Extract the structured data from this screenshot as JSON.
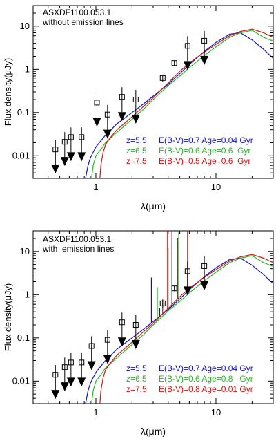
{
  "chart_data": [
    {
      "type": "line",
      "title": "ASXDF1100.053.1",
      "subtitle": "without emission lines",
      "xlabel": "λ(μm)",
      "ylabel": "Flux density(μJy)",
      "xscale": "log",
      "yscale": "log",
      "xlim": [
        0.3,
        30
      ],
      "ylim": [
        0.003,
        30
      ],
      "xticks": [
        {
          "value": 1,
          "label": "1"
        },
        {
          "value": 10,
          "label": "10"
        }
      ],
      "yticks": [
        {
          "value": 0.01,
          "label": "0.01"
        },
        {
          "value": 0.1,
          "label": "0.1"
        },
        {
          "value": 1,
          "label": "1"
        },
        {
          "value": 10,
          "label": "10"
        }
      ],
      "legend_position": "bottom-right",
      "series": [
        {
          "label": "z=5.5",
          "params": "E(B-V)=0.7 Age=0.04 Gyr",
          "color": "#1010c8",
          "x": [
            0.82,
            0.86,
            0.9,
            1.0,
            1.2,
            1.5,
            2.0,
            2.5,
            3.0,
            4.0,
            5.0,
            6.0,
            8.0,
            10.0,
            13.0,
            16.0,
            20.0,
            25.0,
            30.0
          ],
          "y": [
            0.003,
            0.006,
            0.009,
            0.016,
            0.03,
            0.055,
            0.1,
            0.16,
            0.24,
            0.45,
            0.8,
            1.3,
            2.6,
            4.2,
            6.5,
            7.0,
            4.8,
            2.9,
            1.8
          ]
        },
        {
          "label": "z=6.5",
          "params": "E(B-V)=0.6 Age=0.6  Gyr",
          "color": "#22bb22",
          "x": [
            0.92,
            0.95,
            1.0,
            1.1,
            1.2,
            1.5,
            2.0,
            2.5,
            3.0,
            4.0,
            5.0,
            6.0,
            8.0,
            10.0,
            13.0,
            16.0,
            20.0,
            25.0,
            30.0
          ],
          "y": [
            0.003,
            0.006,
            0.01,
            0.014,
            0.02,
            0.035,
            0.07,
            0.12,
            0.2,
            0.42,
            0.7,
            1.1,
            2.1,
            3.3,
            5.5,
            7.0,
            8.0,
            5.5,
            4.5
          ]
        },
        {
          "label": "z=7.5",
          "params": "E(B-V)=0.5 Age=0.6  Gyr",
          "color": "#dd1111",
          "x": [
            1.08,
            1.1,
            1.15,
            1.2,
            1.3,
            1.5,
            2.0,
            2.5,
            3.0,
            4.0,
            5.0,
            6.0,
            8.0,
            10.0,
            13.0,
            16.0,
            20.0,
            25.0,
            30.0
          ],
          "y": [
            0.003,
            0.006,
            0.012,
            0.018,
            0.025,
            0.04,
            0.08,
            0.14,
            0.22,
            0.48,
            0.9,
            1.4,
            2.5,
            3.8,
            6.0,
            7.5,
            8.5,
            7.0,
            5.5
          ]
        }
      ],
      "detections": [
        {
          "x": 3.6,
          "y": 0.63,
          "yerr": 0.12
        },
        {
          "x": 4.5,
          "y": 1.4,
          "yerr": 0.2
        }
      ],
      "upper_limits": [
        {
          "x": 0.46,
          "y": 0.014
        },
        {
          "x": 0.55,
          "y": 0.021
        },
        {
          "x": 0.62,
          "y": 0.027
        },
        {
          "x": 0.76,
          "y": 0.027
        },
        {
          "x": 1.02,
          "y": 0.17
        },
        {
          "x": 1.25,
          "y": 0.09
        },
        {
          "x": 1.65,
          "y": 0.23
        },
        {
          "x": 2.15,
          "y": 0.2
        },
        {
          "x": 5.8,
          "y": 3.5
        },
        {
          "x": 8.0,
          "y": 4.6
        }
      ]
    },
    {
      "type": "line",
      "title": "ASXDF1100.053.1",
      "subtitle": "with  emission lines",
      "xlabel": "λ(μm)",
      "ylabel": "Flux density(μJy)",
      "xscale": "log",
      "yscale": "log",
      "xlim": [
        0.3,
        30
      ],
      "ylim": [
        0.003,
        30
      ],
      "xticks": [
        {
          "value": 1,
          "label": "1"
        },
        {
          "value": 10,
          "label": "10"
        }
      ],
      "yticks": [
        {
          "value": 0.01,
          "label": "0.01"
        },
        {
          "value": 0.1,
          "label": "0.1"
        },
        {
          "value": 1,
          "label": "1"
        },
        {
          "value": 10,
          "label": "10"
        }
      ],
      "legend_position": "bottom-right",
      "series": [
        {
          "label": "z=5.5",
          "params": "E(B-V)=0.7 Age=0.04 Gyr",
          "color": "#1010c8",
          "x": [
            0.82,
            0.86,
            0.9,
            1.0,
            1.2,
            1.5,
            2.0,
            2.5,
            3.0,
            4.0,
            5.0,
            6.0,
            8.0,
            10.0,
            13.0,
            16.0,
            20.0,
            25.0,
            30.0
          ],
          "y": [
            0.003,
            0.006,
            0.009,
            0.016,
            0.03,
            0.055,
            0.1,
            0.16,
            0.24,
            0.45,
            0.8,
            1.3,
            2.6,
            4.2,
            6.5,
            7.0,
            4.8,
            2.9,
            1.8
          ],
          "spikes": [
            {
              "x": 2.9,
              "y": 2.5
            },
            {
              "x": 3.4,
              "y": 0.5
            },
            {
              "x": 4.3,
              "y": 30
            }
          ]
        },
        {
          "label": "z=6.5",
          "params": "E(B-V)=0.6 Age=0.8   Gyr",
          "color": "#22bb22",
          "x": [
            0.92,
            0.95,
            1.0,
            1.1,
            1.2,
            1.5,
            2.0,
            2.5,
            3.0,
            4.0,
            5.0,
            6.0,
            8.0,
            10.0,
            13.0,
            16.0,
            20.0,
            25.0,
            30.0
          ],
          "y": [
            0.003,
            0.006,
            0.01,
            0.014,
            0.02,
            0.035,
            0.07,
            0.12,
            0.2,
            0.42,
            0.7,
            1.1,
            2.1,
            3.3,
            5.5,
            7.0,
            8.0,
            5.5,
            4.5
          ],
          "spikes": [
            {
              "x": 3.25,
              "y": 1.5
            },
            {
              "x": 4.0,
              "y": 12
            },
            {
              "x": 4.9,
              "y": 30
            }
          ]
        },
        {
          "label": "z=7.5",
          "params": "E(B-V)=0.8 Age=0.01 Gyr",
          "color": "#dd1111",
          "x": [
            1.08,
            1.1,
            1.15,
            1.2,
            1.3,
            1.5,
            2.0,
            2.5,
            3.0,
            4.0,
            5.0,
            6.0,
            8.0,
            10.0,
            13.0,
            16.0,
            20.0,
            25.0,
            30.0
          ],
          "y": [
            0.003,
            0.006,
            0.012,
            0.018,
            0.025,
            0.04,
            0.08,
            0.14,
            0.22,
            0.48,
            0.9,
            1.4,
            2.5,
            3.8,
            6.0,
            7.5,
            8.5,
            7.0,
            5.5
          ],
          "spikes": [
            {
              "x": 3.6,
              "y": 0.8
            },
            {
              "x": 3.95,
              "y": 30
            },
            {
              "x": 4.8,
              "y": 20
            },
            {
              "x": 5.8,
              "y": 30
            }
          ]
        }
      ],
      "detections": [
        {
          "x": 3.6,
          "y": 0.63,
          "yerr": 0.12
        },
        {
          "x": 4.5,
          "y": 1.4,
          "yerr": 0.2
        }
      ],
      "upper_limits": [
        {
          "x": 0.46,
          "y": 0.014
        },
        {
          "x": 0.55,
          "y": 0.021
        },
        {
          "x": 0.62,
          "y": 0.027
        },
        {
          "x": 0.76,
          "y": 0.027
        },
        {
          "x": 0.92,
          "y": 0.065
        },
        {
          "x": 1.25,
          "y": 0.09
        },
        {
          "x": 1.65,
          "y": 0.23
        },
        {
          "x": 2.15,
          "y": 0.2
        },
        {
          "x": 5.8,
          "y": 3.5
        },
        {
          "x": 8.0,
          "y": 4.6
        }
      ]
    }
  ]
}
